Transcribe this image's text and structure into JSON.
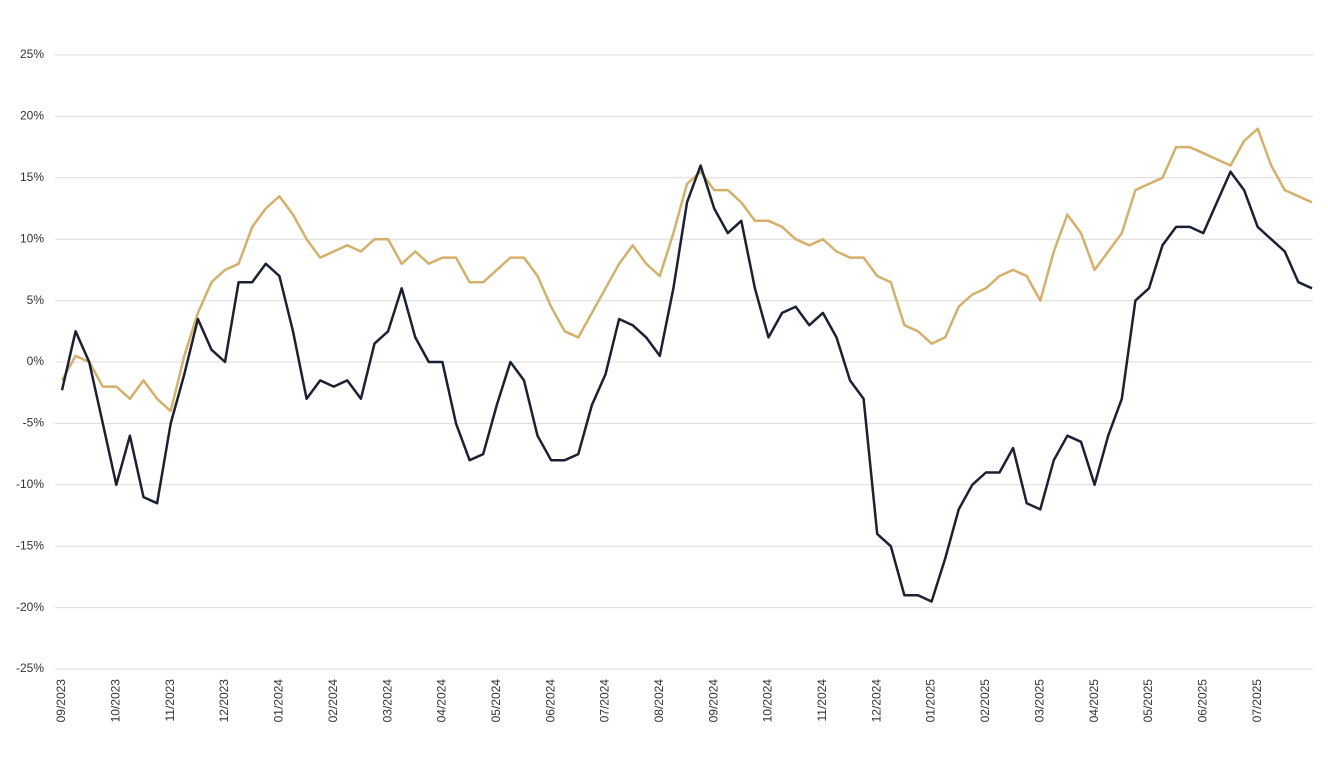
{
  "chart_data": {
    "type": "line",
    "categories": [
      "09/2023",
      null,
      null,
      null,
      "10/2023",
      null,
      null,
      null,
      "11/2023",
      null,
      null,
      null,
      "12/2023",
      null,
      null,
      null,
      "01/2024",
      null,
      null,
      null,
      "02/2024",
      null,
      null,
      null,
      "03/2024",
      null,
      null,
      null,
      "04/2024",
      null,
      null,
      null,
      "05/2024",
      null,
      null,
      null,
      "06/2024",
      null,
      null,
      null,
      "07/2024",
      null,
      null,
      null,
      "08/2024",
      null,
      null,
      null,
      "09/2024",
      null,
      null,
      null,
      "10/2024",
      null,
      null,
      null,
      "11/2024",
      null,
      null,
      null,
      "12/2024",
      null,
      null,
      null,
      "01/2025",
      null,
      null,
      null,
      "02/2025",
      null,
      null,
      null,
      "03/2025",
      null,
      null,
      null,
      "04/2025",
      null,
      null,
      null,
      "05/2025",
      null,
      null,
      null,
      "06/2025",
      null,
      null,
      null,
      "07/2025",
      null,
      null,
      null,
      null
    ],
    "series": [
      {
        "color": "#d4b06a",
        "values": [
          -1.5,
          0.5,
          0,
          -2,
          -2,
          -3,
          -1.5,
          -3,
          -4,
          0.5,
          4,
          6.5,
          7.5,
          8,
          11,
          12.5,
          13.5,
          12,
          10,
          8.5,
          9,
          9.5,
          9,
          10,
          10,
          8,
          9,
          8,
          8.5,
          8.5,
          6.5,
          6.5,
          7.5,
          8.5,
          8.5,
          7,
          4.5,
          2.5,
          2,
          4,
          6,
          8,
          9.5,
          8,
          7,
          10.5,
          14.5,
          15.5,
          14,
          14,
          13,
          11.5,
          11.5,
          11,
          10,
          9.5,
          10,
          9,
          8.5,
          8.5,
          7,
          6.5,
          3,
          2.5,
          1.5,
          2,
          4.5,
          5.5,
          6,
          7,
          7.5,
          7,
          5,
          9,
          12,
          10.5,
          7.5,
          9,
          10.5,
          14,
          14.5,
          15,
          17.5,
          17.5,
          17,
          16.5,
          16,
          18,
          19,
          16,
          14,
          13.5,
          13
        ]
      },
      {
        "color": "#1c2033",
        "values": [
          -2.3,
          2.5,
          0,
          -5,
          -10,
          -6,
          -11,
          -11.5,
          -5,
          -1,
          3.5,
          1,
          0,
          6.5,
          6.5,
          8,
          7,
          2.5,
          -3,
          -1.5,
          -2,
          -1.5,
          -3,
          1.5,
          2.5,
          6,
          2,
          0,
          0,
          -5,
          -8,
          -7.5,
          -3.5,
          0,
          -1.5,
          -6,
          -8,
          -8,
          -7.5,
          -3.5,
          -1,
          3.5,
          3,
          2,
          0.5,
          6,
          13,
          16,
          12.5,
          10.5,
          11.5,
          6,
          2,
          4,
          4.5,
          3,
          4,
          2,
          -1.5,
          -3,
          -14,
          -15,
          -19,
          -19,
          -19.5,
          -16,
          -12,
          -10,
          -9,
          -9,
          -7,
          -11.5,
          -12,
          -8,
          -6,
          -6.5,
          -10,
          -6,
          -3,
          5,
          6,
          9.5,
          11,
          11,
          10.5,
          13,
          15.5,
          14,
          11,
          10,
          9,
          6.5,
          6
        ]
      }
    ],
    "ylim": [
      -25,
      25
    ],
    "yticks": [
      {
        "value": -25,
        "label": "-25%"
      },
      {
        "value": -20,
        "label": "-20%"
      },
      {
        "value": -15,
        "label": "-15%"
      },
      {
        "value": -10,
        "label": "-10%"
      },
      {
        "value": -5,
        "label": "-5%"
      },
      {
        "value": 0,
        "label": "0%"
      },
      {
        "value": 5,
        "label": "5%"
      },
      {
        "value": 10,
        "label": "10%"
      },
      {
        "value": 15,
        "label": "15%"
      },
      {
        "value": 20,
        "label": "20%"
      },
      {
        "value": 25,
        "label": "25%"
      }
    ],
    "grid": true
  }
}
